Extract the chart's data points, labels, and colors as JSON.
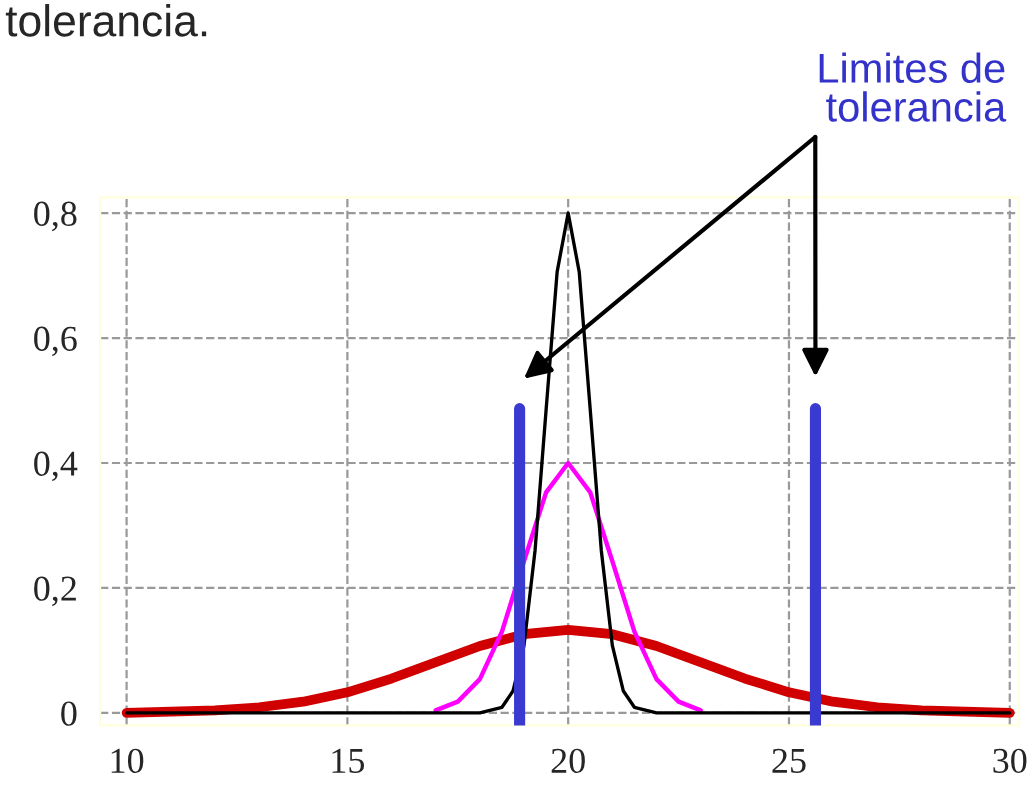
{
  "chart_data": {
    "type": "line",
    "annotations": [
      "tolerancia.",
      "Limites de\ntolerancia"
    ],
    "xlim": [
      9.4,
      30.2
    ],
    "ylim": [
      -0.02,
      0.825
    ],
    "xticks": [
      10,
      15,
      20,
      25,
      30
    ],
    "yticks": [
      {
        "value": 0,
        "label": "0"
      },
      {
        "value": 0.2,
        "label": "0,2"
      },
      {
        "value": 0.4,
        "label": "0,4"
      },
      {
        "value": 0.6,
        "label": "0,6"
      },
      {
        "value": 0.8,
        "label": "0,8"
      }
    ],
    "grid": true,
    "line_style": "solid",
    "marker": "none",
    "series": [
      {
        "color": "#d00000",
        "x": [
          10,
          12,
          13,
          14,
          15,
          16,
          17,
          18,
          19,
          20,
          21,
          22,
          23,
          24,
          25,
          26,
          27,
          28,
          30
        ],
        "values": [
          0,
          0.004,
          0.009,
          0.018,
          0.033,
          0.055,
          0.081,
          0.107,
          0.126,
          0.133,
          0.126,
          0.107,
          0.081,
          0.055,
          0.033,
          0.018,
          0.009,
          0.004,
          0
        ]
      },
      {
        "color": "#ff00ff",
        "x": [
          17,
          17.5,
          18,
          18.5,
          19,
          19.5,
          20,
          20.5,
          21,
          21.5,
          22,
          22.5,
          23
        ],
        "values": [
          0.004,
          0.018,
          0.054,
          0.13,
          0.243,
          0.353,
          0.4,
          0.353,
          0.243,
          0.13,
          0.054,
          0.018,
          0.004
        ]
      },
      {
        "color": "#000000",
        "x": [
          10,
          18,
          18.5,
          18.75,
          19,
          19.25,
          19.5,
          19.75,
          20,
          20.25,
          20.5,
          20.75,
          21,
          21.25,
          21.5,
          22,
          30
        ],
        "values": [
          0,
          0,
          0.009,
          0.035,
          0.108,
          0.26,
          0.485,
          0.706,
          0.8,
          0.706,
          0.485,
          0.26,
          0.108,
          0.035,
          0.009,
          0,
          0
        ]
      }
    ],
    "ref_lines": [
      {
        "axis": "x",
        "value": 18.9,
        "color": "#3a3ad0"
      },
      {
        "axis": "x",
        "value": 25.6,
        "color": "#3a3ad0"
      }
    ]
  }
}
